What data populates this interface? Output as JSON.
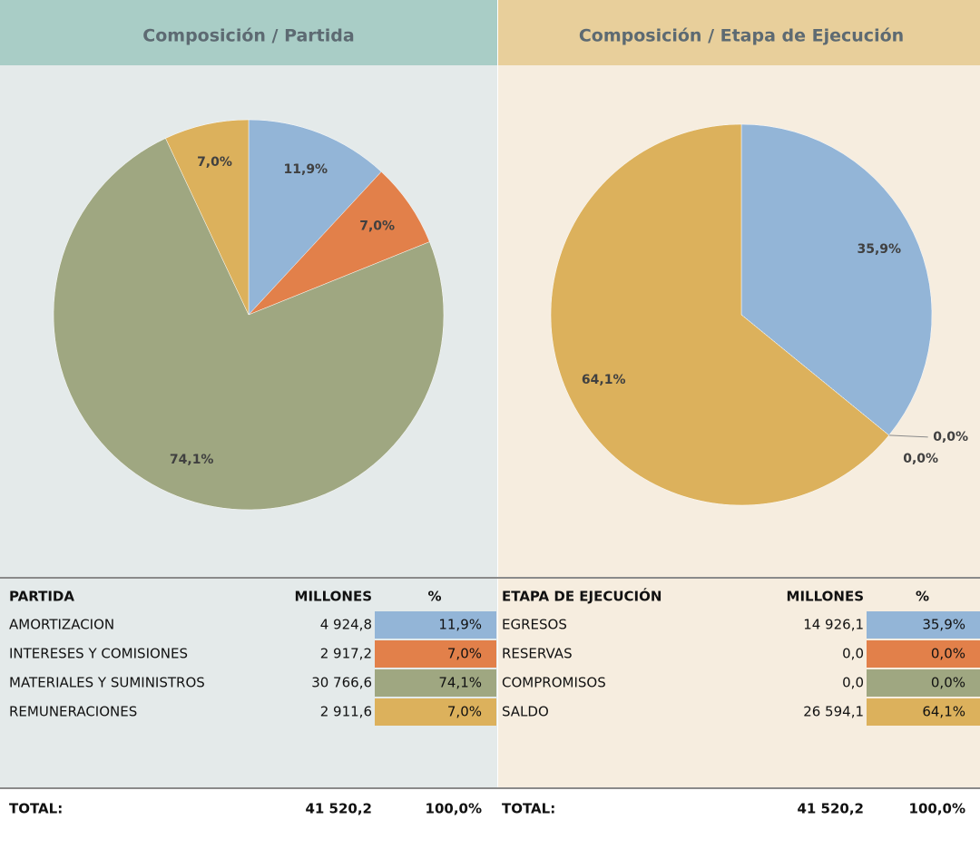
{
  "chart_data": [
    {
      "type": "pie",
      "title": "Composición / Partida",
      "categories": [
        "AMORTIZACION",
        "INTERESES Y COMISIONES",
        "MATERIALES Y SUMINISTROS",
        "REMUNERACIONES"
      ],
      "values": [
        11.9,
        7.0,
        74.1,
        7.0
      ],
      "value_labels": [
        "11,9%",
        "7,0%",
        "74,1%",
        "7,0%"
      ],
      "colors": [
        "#93b5d7",
        "#e2804a",
        "#9fa781",
        "#dcb15c"
      ]
    },
    {
      "type": "pie",
      "title": "Composición / Etapa de Ejecución",
      "categories": [
        "EGRESOS",
        "RESERVAS",
        "COMPROMISOS",
        "SALDO"
      ],
      "values": [
        35.9,
        0.0,
        0.0,
        64.1
      ],
      "value_labels": [
        "35,9%",
        "0,0%",
        "0,0%",
        "64,1%"
      ],
      "colors": [
        "#93b5d7",
        "#e2804a",
        "#9fa781",
        "#dcb15c"
      ]
    }
  ],
  "tables": [
    {
      "columns": [
        "PARTIDA",
        "MILLONES",
        "%"
      ],
      "rows": [
        [
          "AMORTIZACION",
          "4 924,8",
          "11,9%"
        ],
        [
          "INTERESES Y COMISIONES",
          "2 917,2",
          "7,0%"
        ],
        [
          "MATERIALES Y SUMINISTROS",
          "30 766,6",
          "74,1%"
        ],
        [
          "REMUNERACIONES",
          "2 911,6",
          "7,0%"
        ]
      ],
      "total": [
        "TOTAL:",
        "41 520,2",
        "100,0%"
      ]
    },
    {
      "columns": [
        "ETAPA DE EJECUCIÓN",
        "MILLONES",
        "%"
      ],
      "rows": [
        [
          "EGRESOS",
          "14 926,1",
          "35,9%"
        ],
        [
          "RESERVAS",
          "0,0",
          "0,0%"
        ],
        [
          "COMPROMISOS",
          "0,0",
          "0,0%"
        ],
        [
          "SALDO",
          "26 594,1",
          "64,1%"
        ]
      ],
      "total": [
        "TOTAL:",
        "41 520,2",
        "100,0%"
      ]
    }
  ]
}
